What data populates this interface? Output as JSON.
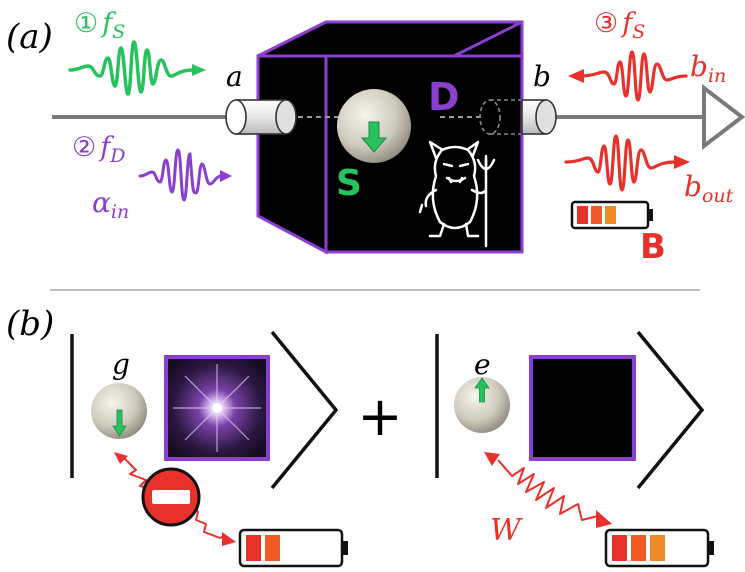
{
  "panel_a": {
    "label": "(a)",
    "port_a": "a",
    "port_b": "b",
    "pulse1": {
      "num": "①",
      "sym": "f",
      "sub": "S"
    },
    "pulse2": {
      "num": "②",
      "sym": "f",
      "sub": "D",
      "amp": "α",
      "amp_sub": "in"
    },
    "pulse3": {
      "num": "③",
      "sym": "f",
      "sub": "S"
    },
    "b_in": {
      "sym": "b",
      "sub": "in"
    },
    "b_out": {
      "sym": "b",
      "sub": "out"
    },
    "box_label": "D",
    "system_label": "S",
    "battery_label": "B"
  },
  "panel_b": {
    "label": "(b)",
    "state_g": "g",
    "state_e": "e",
    "plus": "+",
    "work_label": "W"
  },
  "colors": {
    "green": "#27c25f",
    "purple": "#8a3fd1",
    "red": "#e8312b",
    "orange": "#f08a24",
    "grey": "#7a7a7a"
  }
}
